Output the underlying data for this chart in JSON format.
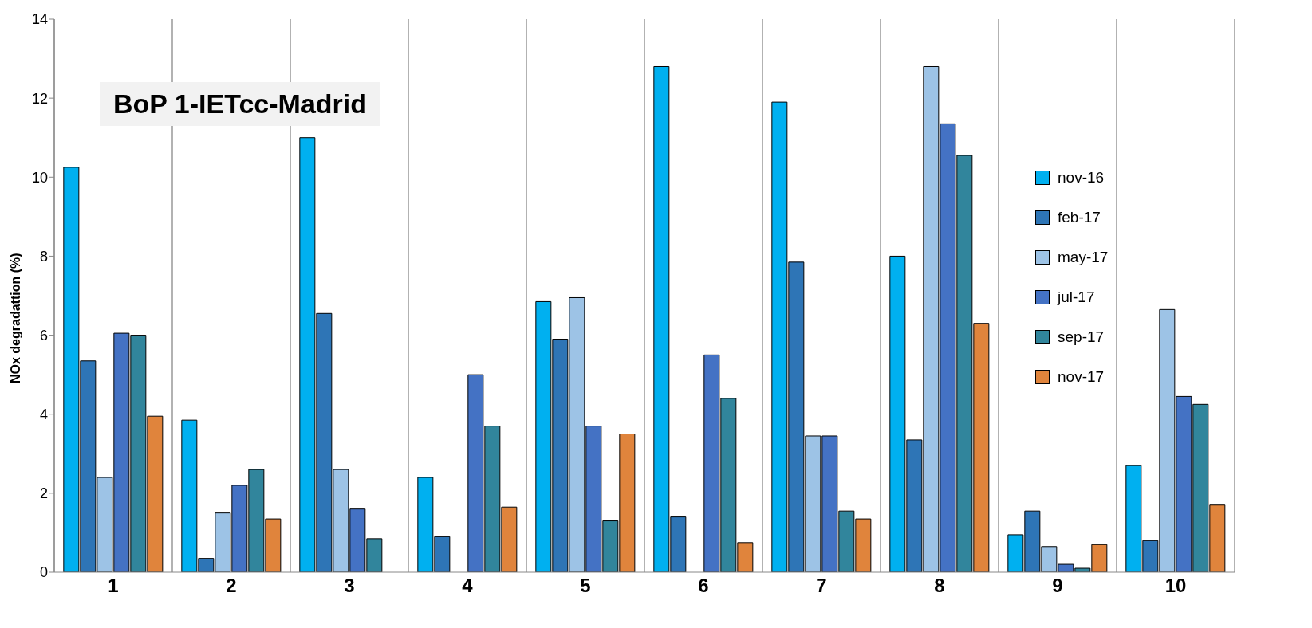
{
  "chart_data": {
    "type": "bar",
    "title": "BoP 1-IETcc-Madrid",
    "ylabel": "NOx  degradattion (%)",
    "categories": [
      "1",
      "2",
      "3",
      "4",
      "5",
      "6",
      "7",
      "8",
      "9",
      "10"
    ],
    "series": [
      {
        "name": "nov-16",
        "color": "#00b0f0",
        "values": [
          10.25,
          3.85,
          11.0,
          2.4,
          6.85,
          12.8,
          11.9,
          8.0,
          0.95,
          2.7
        ]
      },
      {
        "name": "feb-17",
        "color": "#2e75b6",
        "values": [
          5.35,
          0.35,
          6.55,
          0.9,
          5.9,
          1.4,
          7.85,
          3.35,
          1.55,
          0.8
        ]
      },
      {
        "name": "may-17",
        "color": "#9dc3e6",
        "values": [
          2.4,
          1.5,
          2.6,
          null,
          6.95,
          null,
          3.45,
          12.8,
          0.65,
          6.65
        ]
      },
      {
        "name": "jul-17",
        "color": "#4472c4",
        "values": [
          6.05,
          2.2,
          1.6,
          5.0,
          3.7,
          5.5,
          3.45,
          11.35,
          0.2,
          4.45
        ]
      },
      {
        "name": "sep-17",
        "color": "#31859c",
        "values": [
          6.0,
          2.6,
          0.85,
          3.7,
          1.3,
          4.4,
          1.55,
          10.55,
          0.1,
          4.25
        ]
      },
      {
        "name": "nov-17",
        "color": "#e0843c",
        "values": [
          3.95,
          1.35,
          null,
          1.65,
          3.5,
          0.75,
          1.35,
          6.3,
          0.7,
          1.7
        ]
      }
    ],
    "ylim": [
      0,
      14
    ],
    "yticks": [
      0,
      2,
      4,
      6,
      8,
      10,
      12,
      14
    ],
    "grid": "x",
    "legend": "right"
  }
}
